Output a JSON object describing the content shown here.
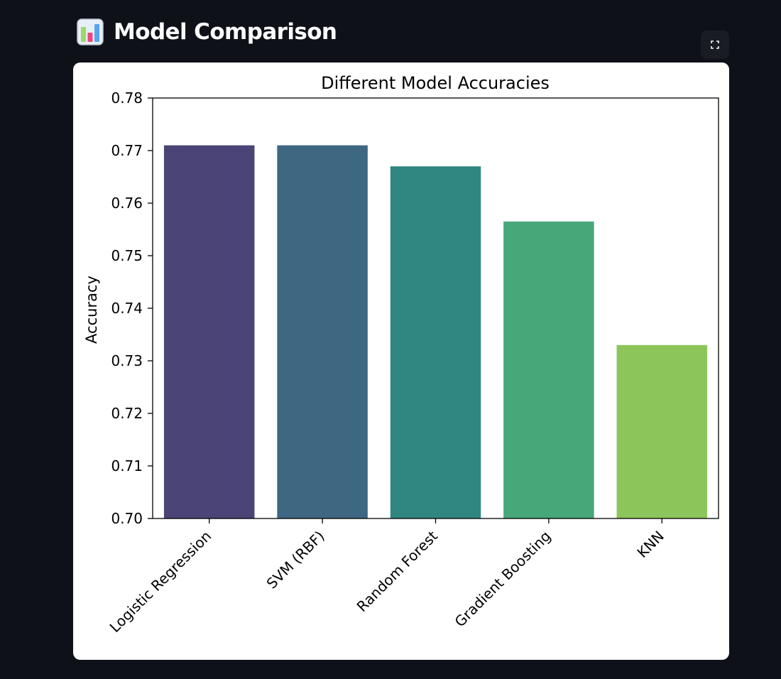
{
  "page": {
    "title": "Model Comparison",
    "title_icon": "bar-chart-emoji-icon",
    "fullscreen_icon": "expand-icon"
  },
  "chart_data": {
    "type": "bar",
    "title": "Different Model Accuracies",
    "xlabel": "",
    "ylabel": "Accuracy",
    "categories": [
      "Logistic Regression",
      "SVM (RBF)",
      "Random Forest",
      "Gradient Boosting",
      "KNN"
    ],
    "values": [
      0.771,
      0.771,
      0.767,
      0.7565,
      0.733
    ],
    "colors": [
      "#4b4577",
      "#3e6882",
      "#308680",
      "#47a778",
      "#8cc55a"
    ],
    "ylim": [
      0.7,
      0.78
    ],
    "yticks": [
      "0.70",
      "0.71",
      "0.72",
      "0.73",
      "0.74",
      "0.75",
      "0.76",
      "0.77",
      "0.78"
    ],
    "grid": false,
    "legend": "none"
  }
}
